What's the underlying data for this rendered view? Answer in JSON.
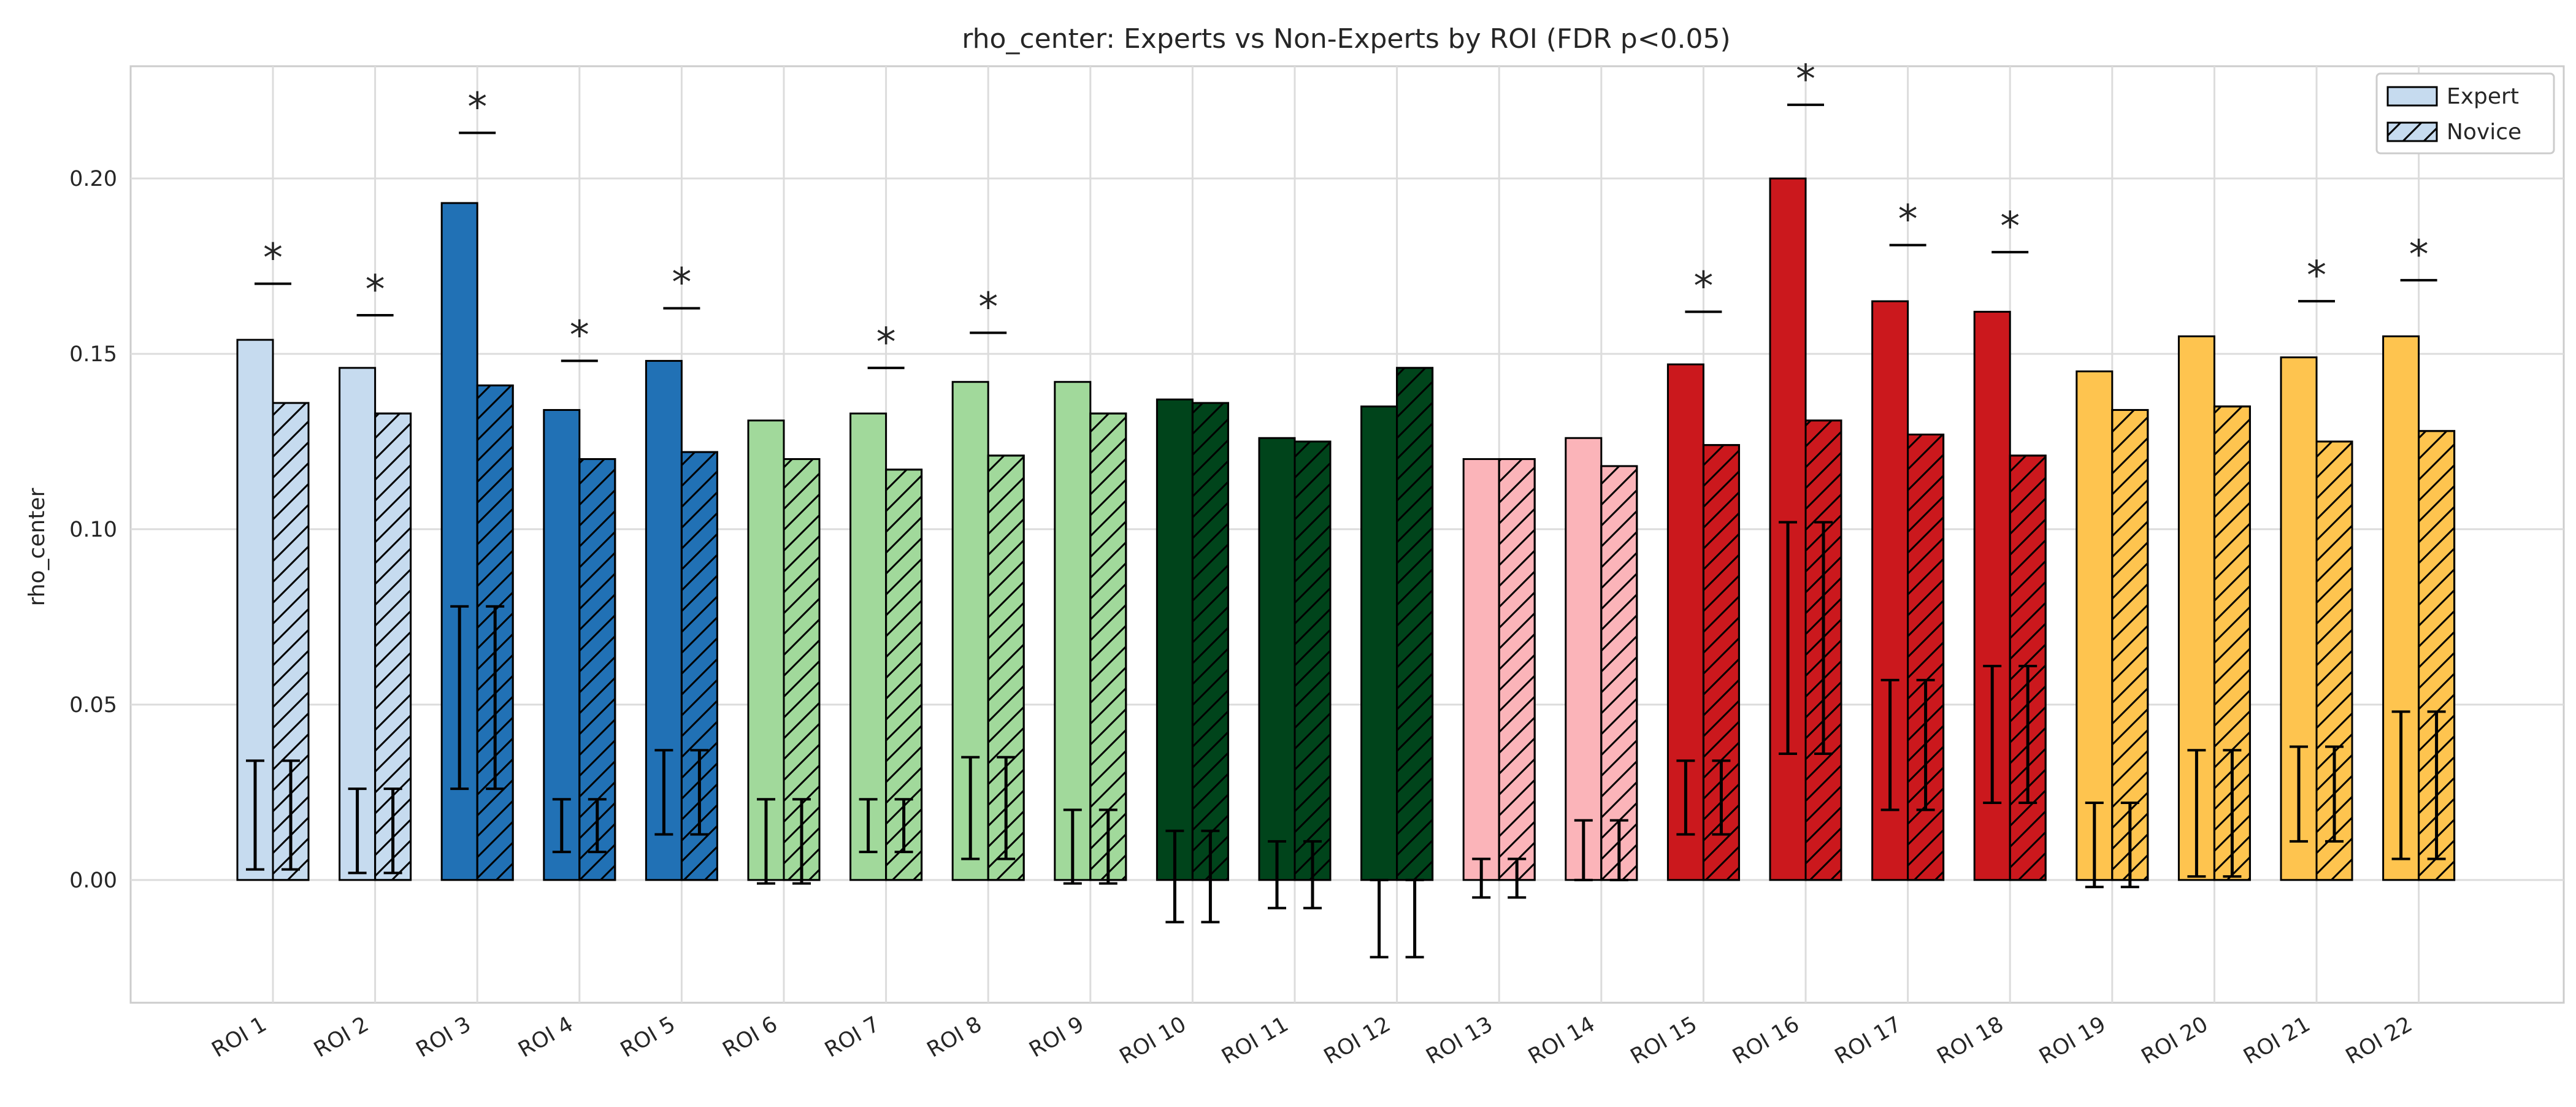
{
  "chart_data": {
    "type": "bar",
    "title": "rho_center: Experts vs Non-Experts by ROI (FDR p<0.05)",
    "xlabel": "",
    "ylabel": "rho_center",
    "ylim": [
      -0.035,
      0.232
    ],
    "yticks": [
      "0.00",
      "0.05",
      "0.10",
      "0.15",
      "0.20"
    ],
    "grid": true,
    "legend_position": "top-right",
    "categories": [
      "ROI 1",
      "ROI 2",
      "ROI 3",
      "ROI 4",
      "ROI 5",
      "ROI 6",
      "ROI 7",
      "ROI 8",
      "ROI 9",
      "ROI 10",
      "ROI 11",
      "ROI 12",
      "ROI 13",
      "ROI 14",
      "ROI 15",
      "ROI 16",
      "ROI 17",
      "ROI 18",
      "ROI 19",
      "ROI 20",
      "ROI 21",
      "ROI 22"
    ],
    "colors": [
      "#c6dbef",
      "#c6dbef",
      "#2171b5",
      "#2171b5",
      "#2171b5",
      "#a1d99b",
      "#a1d99b",
      "#a1d99b",
      "#a1d99b",
      "#00441b",
      "#00441b",
      "#00441b",
      "#fbb4b9",
      "#fbb4b9",
      "#cb181d",
      "#cb181d",
      "#cb181d",
      "#cb181d",
      "#fec44f",
      "#fec44f",
      "#fec44f",
      "#fec44f"
    ],
    "series": [
      {
        "name": "Expert",
        "hatch": false,
        "values": [
          0.154,
          0.146,
          0.193,
          0.134,
          0.148,
          0.131,
          0.133,
          0.142,
          0.142,
          0.137,
          0.126,
          0.135,
          0.12,
          0.126,
          0.147,
          0.2,
          0.165,
          0.162,
          0.145,
          0.155,
          0.149,
          0.155
        ],
        "err_low": [
          0.003,
          0.002,
          0.026,
          0.008,
          0.013,
          -0.001,
          0.008,
          0.006,
          -0.001,
          -0.012,
          -0.008,
          -0.022,
          -0.005,
          0.0,
          0.013,
          0.036,
          0.02,
          0.022,
          -0.002,
          0.001,
          0.011,
          0.006
        ],
        "err_high": [
          0.034,
          0.026,
          0.078,
          0.023,
          0.037,
          0.023,
          0.023,
          0.035,
          0.02,
          0.014,
          0.011,
          0.0,
          0.006,
          0.017,
          0.034,
          0.102,
          0.057,
          0.061,
          0.022,
          0.037,
          0.038,
          0.048
        ]
      },
      {
        "name": "Novice",
        "hatch": true,
        "values": [
          0.136,
          0.133,
          0.141,
          0.12,
          0.122,
          0.12,
          0.117,
          0.121,
          0.133,
          0.136,
          0.125,
          0.146,
          0.12,
          0.118,
          0.124,
          0.131,
          0.127,
          0.121,
          0.134,
          0.135,
          0.125,
          0.128
        ],
        "err_low": [
          0.003,
          0.002,
          0.026,
          0.008,
          0.013,
          -0.001,
          0.008,
          0.006,
          -0.001,
          -0.012,
          -0.008,
          -0.022,
          -0.005,
          0.0,
          0.013,
          0.036,
          0.02,
          0.022,
          -0.002,
          0.001,
          0.011,
          0.006
        ],
        "err_high": [
          0.034,
          0.026,
          0.078,
          0.023,
          0.037,
          0.023,
          0.023,
          0.035,
          0.02,
          0.014,
          0.011,
          0.0,
          0.006,
          0.017,
          0.034,
          0.102,
          0.057,
          0.061,
          0.022,
          0.037,
          0.038,
          0.048
        ]
      }
    ],
    "significance": {
      "marker": "*",
      "rois": [
        "ROI 1",
        "ROI 2",
        "ROI 3",
        "ROI 4",
        "ROI 5",
        "ROI 7",
        "ROI 8",
        "ROI 15",
        "ROI 16",
        "ROI 17",
        "ROI 18",
        "ROI 21",
        "ROI 22"
      ],
      "line_values": [
        0.17,
        0.161,
        0.213,
        0.148,
        0.163,
        0.146,
        0.156,
        0.162,
        0.221,
        0.181,
        0.179,
        0.165,
        0.171
      ]
    }
  }
}
